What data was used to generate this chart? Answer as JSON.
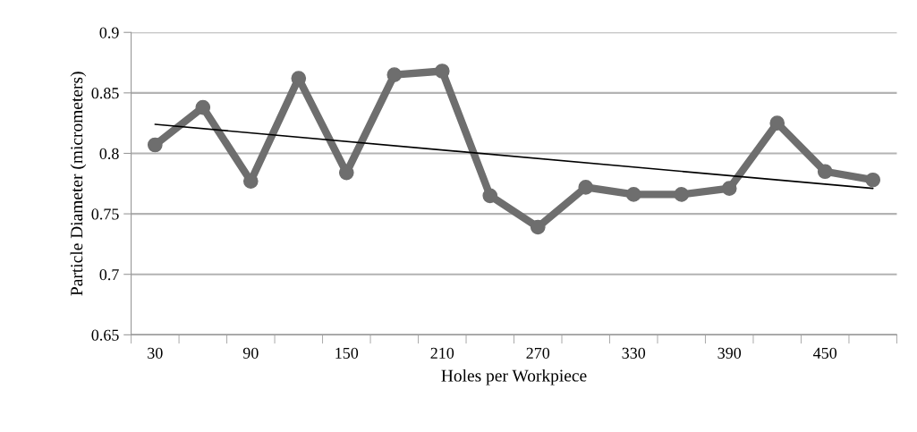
{
  "chart_data": {
    "type": "line",
    "xlabel": "Holes per Workpiece",
    "ylabel": "Particle Diameter (micrometers)",
    "categories": [
      "30",
      null,
      "90",
      null,
      "150",
      null,
      "210",
      null,
      "270",
      null,
      "330",
      null,
      "390",
      null,
      "450",
      null
    ],
    "series": [
      {
        "color": "#6e6e6e",
        "marker": "circle",
        "values": [
          0.807,
          0.838,
          0.777,
          0.862,
          0.784,
          0.865,
          0.868,
          0.765,
          0.739,
          0.772,
          0.766,
          0.766,
          0.771,
          0.825,
          0.785,
          0.778
        ]
      },
      {
        "type": "line",
        "color": "#000000",
        "marker": "none",
        "values": [
          0.824,
          null,
          null,
          null,
          null,
          null,
          null,
          null,
          null,
          null,
          null,
          null,
          null,
          null,
          null,
          0.771
        ]
      }
    ],
    "ylim": [
      0.65,
      0.9
    ],
    "yticks": [
      0.65,
      0.7,
      0.75,
      0.8,
      0.85,
      0.9
    ],
    "grid": "y"
  }
}
